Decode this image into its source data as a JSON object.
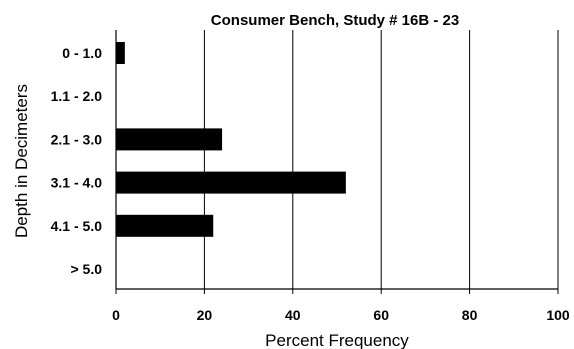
{
  "chart_data": {
    "type": "bar",
    "orientation": "horizontal",
    "title": "Consumer Bench, Study # 16B - 23",
    "xlabel": "Percent Frequency",
    "ylabel": "Depth in Decimeters",
    "categories": [
      "0 - 1.0",
      "1.1 - 2.0",
      "2.1 - 3.0",
      "3.1 - 4.0",
      "4.1 - 5.0",
      "> 5.0"
    ],
    "values": [
      2,
      0,
      24,
      52,
      22,
      0
    ],
    "xlim": [
      0,
      100
    ],
    "xticks": [
      "0",
      "20",
      "40",
      "60",
      "80",
      "100"
    ],
    "grid": "vertical",
    "bar_color": "#000000"
  }
}
